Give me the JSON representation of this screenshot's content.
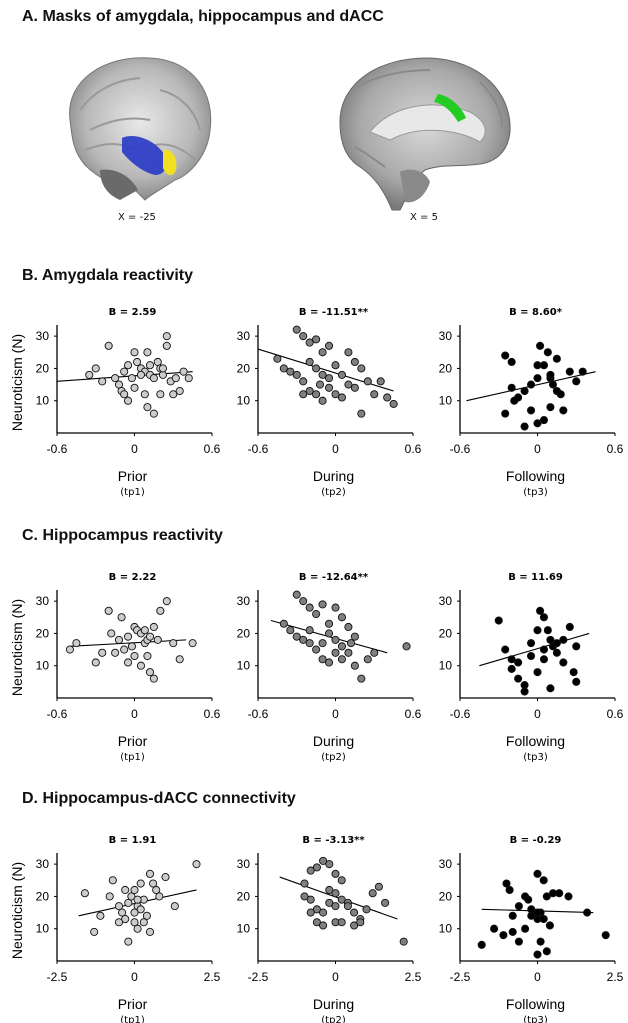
{
  "sections": {
    "A": {
      "title": "A. Masks of amygdala, hippocampus and dACC",
      "left_coord": "X = -25",
      "right_coord": "X = 5"
    },
    "B": {
      "title": "B. Amygdala reactivity"
    },
    "C": {
      "title": "C. Hippocampus reactivity"
    },
    "D": {
      "title": "D. Hippocampus-dACC connectivity"
    }
  },
  "colors": {
    "prior": "#cccccc",
    "during": "#808080",
    "following": "#000000",
    "amygdala": "#f0e020",
    "hippocampus": "#2030c8",
    "dacc": "#22cc22"
  },
  "y_axis_label": "Neuroticism (N)",
  "chart_data": [
    {
      "id": "B-prior",
      "type": "scatter",
      "title": "B = 2.59",
      "xlabel": "Prior",
      "xsub": "(tp1)",
      "xlim": [
        -0.6,
        0.6
      ],
      "xticks": [
        "-0.6",
        "0",
        "0.6"
      ],
      "ylim": [
        0,
        35
      ],
      "yticks": [
        "10",
        "20",
        "30"
      ],
      "fill": "#cccccc",
      "fit": [
        [
          -0.6,
          16
        ],
        [
          0.45,
          19
        ]
      ],
      "points": [
        [
          -0.2,
          27
        ],
        [
          -0.3,
          20
        ],
        [
          -0.25,
          16
        ],
        [
          -0.15,
          17
        ],
        [
          -0.12,
          15
        ],
        [
          -0.1,
          13
        ],
        [
          -0.08,
          12
        ],
        [
          -0.05,
          10
        ],
        [
          -0.08,
          19
        ],
        [
          -0.05,
          21
        ],
        [
          0,
          25
        ],
        [
          0.02,
          22
        ],
        [
          0.05,
          20
        ],
        [
          0.08,
          19
        ],
        [
          0.1,
          25
        ],
        [
          0.12,
          18
        ],
        [
          0.15,
          17
        ],
        [
          0.18,
          22
        ],
        [
          0.2,
          20
        ],
        [
          0.22,
          18
        ],
        [
          0.25,
          30
        ],
        [
          0.25,
          27
        ],
        [
          0.28,
          16
        ],
        [
          0.3,
          12
        ],
        [
          0.32,
          17
        ],
        [
          0.35,
          13
        ],
        [
          0.38,
          19
        ],
        [
          0.42,
          17
        ],
        [
          -0.35,
          18
        ],
        [
          0.1,
          8
        ],
        [
          0.15,
          6
        ],
        [
          0.0,
          14
        ],
        [
          -0.02,
          17
        ],
        [
          0.05,
          18
        ],
        [
          0.08,
          12
        ],
        [
          0.2,
          12
        ],
        [
          0.22,
          20
        ],
        [
          0.12,
          21
        ]
      ]
    },
    {
      "id": "B-during",
      "type": "scatter",
      "title": "B = -11.51**",
      "xlabel": "During",
      "xsub": "(tp2)",
      "xlim": [
        -0.6,
        0.6
      ],
      "xticks": [
        "-0.6",
        "0",
        "0.6"
      ],
      "ylim": [
        0,
        35
      ],
      "yticks": [
        "10",
        "20",
        "30"
      ],
      "fill": "#808080",
      "fit": [
        [
          -0.6,
          26
        ],
        [
          0.45,
          13
        ]
      ],
      "points": [
        [
          -0.3,
          32
        ],
        [
          -0.25,
          30
        ],
        [
          -0.2,
          28
        ],
        [
          -0.15,
          29
        ],
        [
          -0.1,
          25
        ],
        [
          -0.05,
          27
        ],
        [
          -0.45,
          23
        ],
        [
          -0.4,
          20
        ],
        [
          -0.35,
          19
        ],
        [
          -0.3,
          18
        ],
        [
          -0.25,
          16
        ],
        [
          -0.2,
          13
        ],
        [
          -0.15,
          12
        ],
        [
          -0.1,
          10
        ],
        [
          -0.05,
          17
        ],
        [
          0,
          21
        ],
        [
          0.05,
          18
        ],
        [
          0.1,
          15
        ],
        [
          0.15,
          14
        ],
        [
          0.2,
          20
        ],
        [
          0.25,
          16
        ],
        [
          0.3,
          12
        ],
        [
          0.35,
          16
        ],
        [
          0.4,
          11
        ],
        [
          0.45,
          9
        ],
        [
          0.2,
          6
        ],
        [
          -0.05,
          14
        ],
        [
          0.0,
          12
        ],
        [
          0.1,
          25
        ],
        [
          0.15,
          22
        ],
        [
          -0.2,
          22
        ],
        [
          -0.15,
          20
        ],
        [
          -0.1,
          18
        ],
        [
          0.05,
          11
        ],
        [
          -0.25,
          12
        ],
        [
          -0.12,
          15
        ]
      ]
    },
    {
      "id": "B-following",
      "type": "scatter",
      "title": "B = 8.60*",
      "xlabel": "Following",
      "xsub": "(tp3)",
      "xlim": [
        -0.6,
        0.6
      ],
      "xticks": [
        "-0.6",
        "0",
        "0.6"
      ],
      "ylim": [
        0,
        35
      ],
      "yticks": [
        "10",
        "20",
        "30"
      ],
      "fill": "#000000",
      "fit": [
        [
          -0.55,
          10
        ],
        [
          0.45,
          19
        ]
      ],
      "points": [
        [
          -0.25,
          24
        ],
        [
          -0.2,
          22
        ],
        [
          -0.15,
          11
        ],
        [
          -0.18,
          10
        ],
        [
          -0.1,
          13
        ],
        [
          -0.05,
          7
        ],
        [
          0,
          21
        ],
        [
          0.02,
          27
        ],
        [
          0.05,
          21
        ],
        [
          0.08,
          25
        ],
        [
          0.1,
          17
        ],
        [
          0.12,
          15
        ],
        [
          0.15,
          13
        ],
        [
          0.18,
          12
        ],
        [
          0.2,
          7
        ],
        [
          0.25,
          19
        ],
        [
          0.3,
          16
        ],
        [
          0.35,
          19
        ],
        [
          -0.25,
          6
        ],
        [
          -0.2,
          14
        ],
        [
          -0.1,
          2
        ],
        [
          0.0,
          3
        ],
        [
          0.05,
          4
        ],
        [
          -0.05,
          15
        ],
        [
          0.0,
          17
        ],
        [
          0.1,
          8
        ],
        [
          0.15,
          23
        ],
        [
          0.1,
          18
        ]
      ]
    },
    {
      "id": "C-prior",
      "type": "scatter",
      "title": "B = 2.22",
      "xlabel": "Prior",
      "xsub": "(tp1)",
      "xlim": [
        -0.6,
        0.6
      ],
      "xticks": [
        "-0.6",
        "0",
        "0.6"
      ],
      "ylim": [
        0,
        35
      ],
      "yticks": [
        "10",
        "20",
        "30"
      ],
      "fill": "#cccccc",
      "fit": [
        [
          -0.5,
          16
        ],
        [
          0.4,
          18
        ]
      ],
      "points": [
        [
          -0.5,
          15
        ],
        [
          -0.45,
          17
        ],
        [
          -0.3,
          11
        ],
        [
          -0.25,
          14
        ],
        [
          -0.2,
          27
        ],
        [
          -0.18,
          20
        ],
        [
          -0.1,
          25
        ],
        [
          -0.05,
          19
        ],
        [
          0,
          22
        ],
        [
          0.02,
          21
        ],
        [
          0.05,
          20
        ],
        [
          0.08,
          17
        ],
        [
          0.1,
          13
        ],
        [
          0.12,
          8
        ],
        [
          0.15,
          6
        ],
        [
          0.18,
          18
        ],
        [
          0.2,
          27
        ],
        [
          0.25,
          30
        ],
        [
          0.3,
          17
        ],
        [
          0.35,
          12
        ],
        [
          -0.15,
          14
        ],
        [
          -0.12,
          18
        ],
        [
          -0.08,
          15
        ],
        [
          0,
          13
        ],
        [
          0.05,
          10
        ],
        [
          0.1,
          18
        ],
        [
          0.15,
          22
        ],
        [
          0.45,
          17
        ],
        [
          -0.02,
          16
        ],
        [
          0.08,
          21
        ],
        [
          0.12,
          19
        ],
        [
          -0.05,
          11
        ]
      ]
    },
    {
      "id": "C-during",
      "type": "scatter",
      "title": "B = -12.64**",
      "xlabel": "During",
      "xsub": "(tp2)",
      "xlim": [
        -0.6,
        0.6
      ],
      "xticks": [
        "-0.6",
        "0",
        "0.6"
      ],
      "ylim": [
        0,
        35
      ],
      "yticks": [
        "10",
        "20",
        "30"
      ],
      "fill": "#808080",
      "fit": [
        [
          -0.5,
          24
        ],
        [
          0.4,
          14
        ]
      ],
      "points": [
        [
          -0.4,
          23
        ],
        [
          -0.3,
          32
        ],
        [
          -0.25,
          30
        ],
        [
          -0.2,
          28
        ],
        [
          -0.15,
          26
        ],
        [
          -0.1,
          29
        ],
        [
          -0.05,
          23
        ],
        [
          0,
          28
        ],
        [
          0.05,
          25
        ],
        [
          0.1,
          22
        ],
        [
          0.15,
          19
        ],
        [
          -0.35,
          21
        ],
        [
          -0.3,
          19
        ],
        [
          -0.25,
          18
        ],
        [
          -0.2,
          17
        ],
        [
          -0.15,
          15
        ],
        [
          -0.1,
          12
        ],
        [
          -0.05,
          11
        ],
        [
          0,
          18
        ],
        [
          0.05,
          16
        ],
        [
          0.1,
          14
        ],
        [
          0.15,
          10
        ],
        [
          0.2,
          6
        ],
        [
          0.25,
          12
        ],
        [
          0.3,
          14
        ],
        [
          0.55,
          16
        ],
        [
          -0.05,
          20
        ],
        [
          0,
          14
        ],
        [
          0.05,
          12
        ],
        [
          -0.1,
          17
        ],
        [
          -0.2,
          21
        ],
        [
          0.12,
          17
        ]
      ]
    },
    {
      "id": "C-following",
      "type": "scatter",
      "title": "B = 11.69",
      "xlabel": "Following",
      "xsub": "(tp3)",
      "xlim": [
        -0.6,
        0.6
      ],
      "xticks": [
        "-0.6",
        "0",
        "0.6"
      ],
      "ylim": [
        0,
        35
      ],
      "yticks": [
        "10",
        "20",
        "30"
      ],
      "fill": "#000000",
      "fit": [
        [
          -0.45,
          10
        ],
        [
          0.4,
          20
        ]
      ],
      "points": [
        [
          -0.3,
          24
        ],
        [
          -0.25,
          15
        ],
        [
          -0.2,
          12
        ],
        [
          -0.15,
          11
        ],
        [
          -0.1,
          2
        ],
        [
          -0.05,
          13
        ],
        [
          0,
          21
        ],
        [
          0.02,
          27
        ],
        [
          0.05,
          25
        ],
        [
          0.08,
          21
        ],
        [
          0.1,
          18
        ],
        [
          0.12,
          16
        ],
        [
          0.15,
          14
        ],
        [
          0.2,
          11
        ],
        [
          0.25,
          22
        ],
        [
          0.3,
          16
        ],
        [
          -0.2,
          9
        ],
        [
          -0.15,
          6
        ],
        [
          -0.1,
          4
        ],
        [
          0,
          8
        ],
        [
          0.05,
          12
        ],
        [
          0.1,
          3
        ],
        [
          0.15,
          17
        ],
        [
          0.2,
          18
        ],
        [
          0.28,
          8
        ],
        [
          0.3,
          5
        ],
        [
          -0.05,
          17
        ],
        [
          0.05,
          15
        ]
      ]
    },
    {
      "id": "D-prior",
      "type": "scatter",
      "title": "B = 1.91",
      "xlabel": "Prior",
      "xsub": "(tp1)",
      "xlim": [
        -2.5,
        2.5
      ],
      "xticks": [
        "-2.5",
        "0",
        "2.5"
      ],
      "ylim": [
        0,
        35
      ],
      "yticks": [
        "10",
        "20",
        "30"
      ],
      "fill": "#cccccc",
      "fit": [
        [
          -1.8,
          14
        ],
        [
          2.0,
          22
        ]
      ],
      "points": [
        [
          -1.6,
          21
        ],
        [
          -1.3,
          9
        ],
        [
          -1.1,
          14
        ],
        [
          -0.8,
          20
        ],
        [
          -0.7,
          25
        ],
        [
          -0.5,
          17
        ],
        [
          -0.4,
          15
        ],
        [
          -0.3,
          13
        ],
        [
          -0.2,
          18
        ],
        [
          -0.1,
          20
        ],
        [
          0,
          22
        ],
        [
          0.1,
          17
        ],
        [
          0.2,
          16
        ],
        [
          0.3,
          19
        ],
        [
          0.4,
          14
        ],
        [
          0.5,
          27
        ],
        [
          0.6,
          24
        ],
        [
          0.7,
          22
        ],
        [
          0.8,
          20
        ],
        [
          1.0,
          26
        ],
        [
          1.3,
          17
        ],
        [
          2.0,
          30
        ],
        [
          -0.2,
          6
        ],
        [
          0,
          12
        ],
        [
          0.1,
          10
        ],
        [
          0.3,
          12
        ],
        [
          0.5,
          9
        ],
        [
          -0.5,
          12
        ],
        [
          0,
          15
        ],
        [
          -0.3,
          22
        ],
        [
          0.2,
          24
        ],
        [
          0.1,
          19
        ]
      ]
    },
    {
      "id": "D-during",
      "type": "scatter",
      "title": "B = -3.13**",
      "xlabel": "During",
      "xsub": "(tp2)",
      "xlim": [
        -2.5,
        2.5
      ],
      "xticks": [
        "-2.5",
        "0",
        "2.5"
      ],
      "ylim": [
        0,
        35
      ],
      "yticks": [
        "10",
        "20",
        "30"
      ],
      "fill": "#808080",
      "fit": [
        [
          -1.8,
          26
        ],
        [
          2.0,
          13
        ]
      ],
      "points": [
        [
          -1.0,
          24
        ],
        [
          -0.8,
          28
        ],
        [
          -0.6,
          29
        ],
        [
          -0.4,
          31
        ],
        [
          -0.2,
          30
        ],
        [
          0,
          27
        ],
        [
          -1.0,
          20
        ],
        [
          -0.8,
          19
        ],
        [
          -0.6,
          16
        ],
        [
          -0.4,
          15
        ],
        [
          -0.2,
          18
        ],
        [
          0,
          17
        ],
        [
          0.2,
          19
        ],
        [
          0.4,
          18
        ],
        [
          0.6,
          15
        ],
        [
          0.8,
          13
        ],
        [
          1.0,
          16
        ],
        [
          1.2,
          21
        ],
        [
          1.4,
          23
        ],
        [
          1.6,
          18
        ],
        [
          2.2,
          6
        ],
        [
          -0.6,
          12
        ],
        [
          -0.4,
          11
        ],
        [
          0,
          12
        ],
        [
          0.2,
          12
        ],
        [
          0.4,
          17
        ],
        [
          -0.2,
          22
        ],
        [
          0,
          21
        ],
        [
          0.2,
          25
        ],
        [
          -0.8,
          15
        ],
        [
          0.6,
          11
        ],
        [
          0.8,
          12
        ]
      ]
    },
    {
      "id": "D-following",
      "type": "scatter",
      "title": "B = -0.29",
      "xlabel": "Following",
      "xsub": "(tp3)",
      "xlim": [
        -2.5,
        2.5
      ],
      "xticks": [
        "-2.5",
        "0",
        "2.5"
      ],
      "ylim": [
        0,
        35
      ],
      "yticks": [
        "10",
        "20",
        "30"
      ],
      "fill": "#000000",
      "fit": [
        [
          -1.8,
          16
        ],
        [
          1.8,
          15
        ]
      ],
      "points": [
        [
          -1.8,
          5
        ],
        [
          -1.4,
          10
        ],
        [
          -1.0,
          24
        ],
        [
          -0.9,
          22
        ],
        [
          -0.8,
          14
        ],
        [
          -0.6,
          17
        ],
        [
          -0.4,
          20
        ],
        [
          -0.3,
          19
        ],
        [
          -0.2,
          16
        ],
        [
          0,
          13
        ],
        [
          0,
          27
        ],
        [
          0.2,
          25
        ],
        [
          0.3,
          20
        ],
        [
          0.5,
          21
        ],
        [
          0.7,
          21
        ],
        [
          1.0,
          20
        ],
        [
          1.6,
          15
        ],
        [
          2.2,
          8
        ],
        [
          -0.8,
          9
        ],
        [
          -0.6,
          6
        ],
        [
          -0.4,
          10
        ],
        [
          0,
          2
        ],
        [
          0.1,
          6
        ],
        [
          0.3,
          3
        ],
        [
          -0.2,
          14
        ],
        [
          0.1,
          15
        ],
        [
          0.4,
          11
        ],
        [
          -1.1,
          8
        ],
        [
          0.0,
          15
        ],
        [
          0.2,
          13
        ]
      ]
    }
  ]
}
